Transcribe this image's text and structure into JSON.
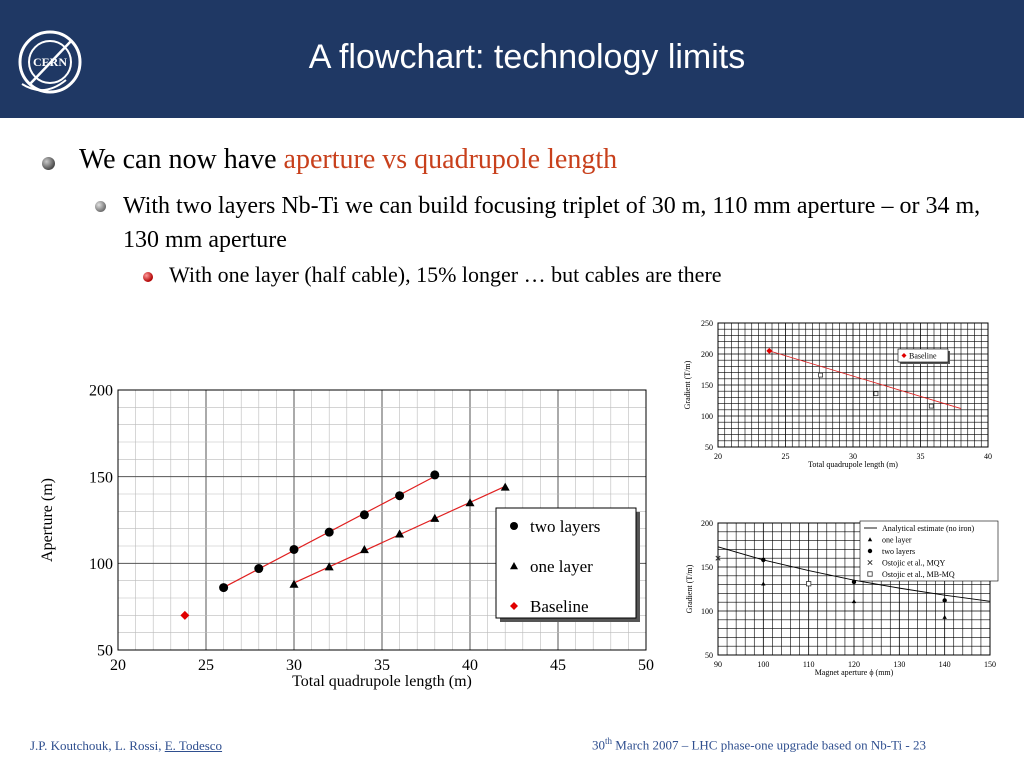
{
  "header": {
    "title": "A flowchart: technology limits",
    "logo_text": "CERN"
  },
  "bullets": {
    "b1_prefix": "We can now have ",
    "b1_accent": "aperture vs quadrupole length",
    "b2": "With two layers Nb-Ti we can build focusing triplet of 30 m, 110 mm aperture – or 34 m, 130 mm aperture",
    "b3": "With one layer (half cable), 15% longer … but cables are there"
  },
  "footer": {
    "authors": "J.P. Koutchouk, L. Rossi, ",
    "author_link": "E. Todesco",
    "date_num": "30",
    "date_sup": "th",
    "date_rest": " March 2007 – LHC phase-one upgrade based on Nb-Ti  - 23"
  },
  "colors": {
    "header_bg": "#1f3864",
    "accent": "#c8401c",
    "fit_line": "#e02020",
    "baseline_marker": "#e00000"
  },
  "chart_data": [
    {
      "type": "scatter",
      "xlabel": "Total quadrupole length (m)",
      "ylabel": "Aperture (m)",
      "xlim": [
        20,
        50
      ],
      "ylim": [
        50,
        200
      ],
      "x_ticks": [
        20,
        25,
        30,
        35,
        40,
        45,
        50
      ],
      "y_ticks": [
        50,
        100,
        150,
        200
      ],
      "grid": true,
      "legend_position": "center-right",
      "series": [
        {
          "name": "two layers",
          "marker": "circle",
          "fit_line": true,
          "points": [
            [
              26,
              86
            ],
            [
              28,
              97
            ],
            [
              30,
              108
            ],
            [
              32,
              118
            ],
            [
              34,
              128
            ],
            [
              36,
              139
            ],
            [
              38,
              151
            ]
          ]
        },
        {
          "name": "one layer",
          "marker": "triangle",
          "fit_line": true,
          "points": [
            [
              30,
              88
            ],
            [
              32,
              98
            ],
            [
              34,
              108
            ],
            [
              36,
              117
            ],
            [
              38,
              126
            ],
            [
              40,
              135
            ],
            [
              42,
              144
            ]
          ]
        },
        {
          "name": "Baseline",
          "marker": "diamond",
          "points": [
            [
              23.8,
              70
            ]
          ]
        }
      ]
    },
    {
      "type": "scatter",
      "xlabel": "Total quadrupole length (m)",
      "ylabel": "Gradient (T/m)",
      "xlim": [
        20,
        40
      ],
      "ylim": [
        50,
        250
      ],
      "x_ticks": [
        20,
        25,
        30,
        35,
        40
      ],
      "y_ticks": [
        50,
        100,
        150,
        200,
        250
      ],
      "grid": true,
      "legend_position": "top-right",
      "series": [
        {
          "name": "Baseline",
          "marker": "diamond",
          "points": [
            [
              23.8,
              205
            ]
          ]
        },
        {
          "name": "",
          "marker": "open-square",
          "points": [
            [
              27.6,
              166
            ],
            [
              31.7,
              136
            ],
            [
              35.8,
              116
            ]
          ]
        },
        {
          "name": "",
          "marker": "line",
          "points": [
            [
              23.8,
              205
            ],
            [
              38,
              112
            ]
          ]
        }
      ]
    },
    {
      "type": "scatter",
      "xlabel": "Magnet aperture ϕ (mm)",
      "ylabel": "Gradient (T/m)",
      "xlim": [
        90,
        150
      ],
      "ylim": [
        50,
        200
      ],
      "x_ticks": [
        90,
        100,
        110,
        120,
        130,
        140,
        150
      ],
      "y_ticks": [
        50,
        100,
        150,
        200
      ],
      "grid": true,
      "legend_position": "top-right",
      "series": [
        {
          "name": "Analytical estimate (no iron)",
          "marker": "line",
          "points": [
            [
              90,
              173
            ],
            [
              100,
              158
            ],
            [
              110,
              146
            ],
            [
              120,
              135
            ],
            [
              130,
              126
            ],
            [
              140,
              118
            ],
            [
              150,
              111
            ]
          ]
        },
        {
          "name": "one layer",
          "marker": "triangle",
          "points": [
            [
              100,
              131
            ],
            [
              120,
              111
            ],
            [
              140,
              93
            ]
          ]
        },
        {
          "name": "two layers",
          "marker": "circle",
          "points": [
            [
              100,
              158
            ],
            [
              120,
              133
            ],
            [
              140,
              112
            ]
          ]
        },
        {
          "name": "Ostojic et al., MQY",
          "marker": "x",
          "points": [
            [
              90,
              160
            ]
          ]
        },
        {
          "name": "Ostojic et al., MB-MQ",
          "marker": "open-square",
          "points": [
            [
              110,
              131
            ]
          ]
        }
      ]
    }
  ]
}
